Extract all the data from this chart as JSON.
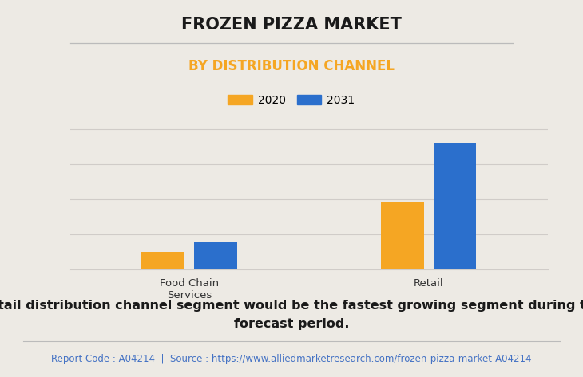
{
  "title": "FROZEN PIZZA MARKET",
  "subtitle": "BY DISTRIBUTION CHANNEL",
  "categories": [
    "Food Chain\nServices",
    "Retail"
  ],
  "series": [
    {
      "label": "2020",
      "color": "#F5A623",
      "values": [
        1.0,
        3.8
      ]
    },
    {
      "label": "2031",
      "color": "#2B6FCC",
      "values": [
        1.55,
        7.2
      ]
    }
  ],
  "bar_width": 0.18,
  "ylim": [
    0,
    9
  ],
  "grid_color": "#d0ccc8",
  "bg_color": "#EDEAE4",
  "plot_bg_color": "#EDEAE4",
  "title_fontsize": 15,
  "subtitle_fontsize": 12,
  "subtitle_color": "#F5A623",
  "legend_fontsize": 10,
  "tick_fontsize": 9.5,
  "annotation_text": "Retail distribution channel segment would be the fastest growing segment during the\nforecast period.",
  "annotation_fontsize": 11.5,
  "footer_text": "Report Code : A04214  |  Source : https://www.alliedmarketresearch.com/frozen-pizza-market-A04214",
  "footer_color": "#4472C4",
  "footer_fontsize": 8.5,
  "title_line_color": "#bbbbbb",
  "footer_line_color": "#bbbbbb"
}
